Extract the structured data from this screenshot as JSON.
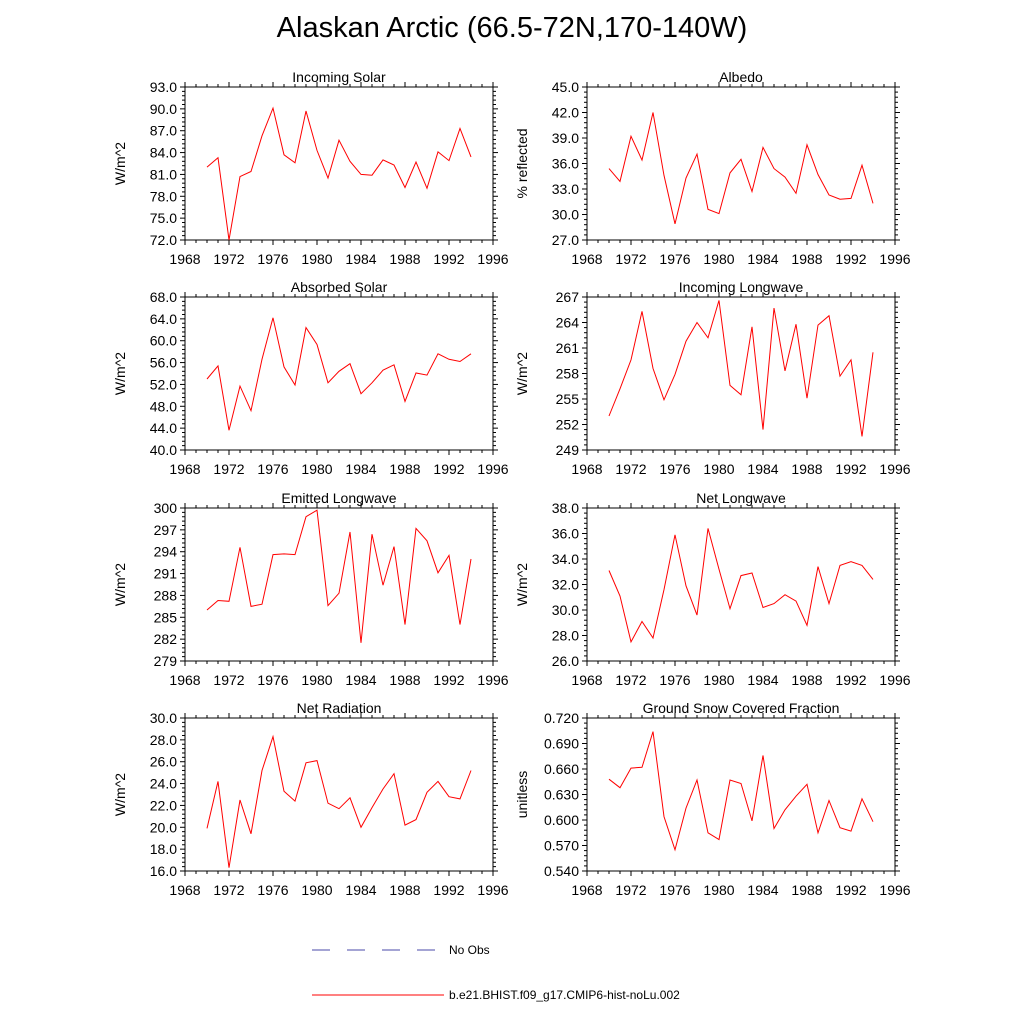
{
  "title": "Alaskan Arctic (66.5-72N,170-140W)",
  "legend": {
    "items": [
      {
        "label": "No Obs",
        "color": "#4a4aa8",
        "style": "dashed"
      },
      {
        "label": "b.e21.BHIST.f09_g17.CMIP6-hist-noLu.002",
        "color": "#ff0000",
        "style": "solid"
      }
    ]
  },
  "chart_data": [
    {
      "type": "line",
      "title": "Incoming Solar",
      "ylabel": "W/m^2",
      "xlabel": "",
      "xlim": [
        1968,
        1996
      ],
      "xticks": [
        1968,
        1972,
        1976,
        1980,
        1984,
        1988,
        1992,
        1996
      ],
      "ylim": [
        72.0,
        93.0
      ],
      "yticks": [
        "72.0",
        "75.0",
        "78.0",
        "81.0",
        "84.0",
        "87.0",
        "90.0",
        "93.0"
      ],
      "series": [
        {
          "name": "b.e21.BHIST.f09_g17.CMIP6-hist-noLu.002",
          "color": "#ff0000",
          "x": [
            1970,
            1971,
            1972,
            1973,
            1974,
            1975,
            1976,
            1977,
            1978,
            1979,
            1980,
            1981,
            1982,
            1983,
            1984,
            1985,
            1986,
            1987,
            1988,
            1989,
            1990,
            1991,
            1992,
            1993,
            1994
          ],
          "y": [
            82.0,
            83.3,
            72.0,
            80.7,
            81.4,
            86.3,
            90.1,
            83.7,
            82.6,
            89.7,
            84.3,
            80.5,
            85.7,
            82.8,
            81.0,
            80.9,
            83.0,
            82.3,
            79.2,
            82.7,
            79.1,
            84.1,
            82.9,
            87.3,
            83.4
          ]
        }
      ]
    },
    {
      "type": "line",
      "title": "Albedo",
      "ylabel": "% reflected",
      "xlabel": "",
      "xlim": [
        1968,
        1996
      ],
      "xticks": [
        1968,
        1972,
        1976,
        1980,
        1984,
        1988,
        1992,
        1996
      ],
      "ylim": [
        27.0,
        45.0
      ],
      "yticks": [
        "27.0",
        "30.0",
        "33.0",
        "36.0",
        "39.0",
        "42.0",
        "45.0"
      ],
      "series": [
        {
          "name": "b.e21.BHIST.f09_g17.CMIP6-hist-noLu.002",
          "color": "#ff0000",
          "x": [
            1970,
            1971,
            1972,
            1973,
            1974,
            1975,
            1976,
            1977,
            1978,
            1979,
            1980,
            1981,
            1982,
            1983,
            1984,
            1985,
            1986,
            1987,
            1988,
            1989,
            1990,
            1991,
            1992,
            1993,
            1994
          ],
          "y": [
            35.4,
            33.9,
            39.2,
            36.4,
            42.0,
            34.6,
            28.9,
            34.3,
            37.1,
            30.6,
            30.1,
            34.9,
            36.5,
            32.7,
            37.9,
            35.4,
            34.4,
            32.5,
            38.2,
            34.7,
            32.3,
            31.8,
            31.9,
            35.8,
            31.3
          ]
        }
      ]
    },
    {
      "type": "line",
      "title": "Absorbed Solar",
      "ylabel": "W/m^2",
      "xlabel": "",
      "xlim": [
        1968,
        1996
      ],
      "xticks": [
        1968,
        1972,
        1976,
        1980,
        1984,
        1988,
        1992,
        1996
      ],
      "ylim": [
        40.0,
        68.0
      ],
      "yticks": [
        "40.0",
        "44.0",
        "48.0",
        "52.0",
        "56.0",
        "60.0",
        "64.0",
        "68.0"
      ],
      "series": [
        {
          "name": "b.e21.BHIST.f09_g17.CMIP6-hist-noLu.002",
          "color": "#ff0000",
          "x": [
            1970,
            1971,
            1972,
            1973,
            1974,
            1975,
            1976,
            1977,
            1978,
            1979,
            1980,
            1981,
            1982,
            1983,
            1984,
            1985,
            1986,
            1987,
            1988,
            1989,
            1990,
            1991,
            1992,
            1993,
            1994
          ],
          "y": [
            53.0,
            55.4,
            43.6,
            51.7,
            47.2,
            56.6,
            64.2,
            55.2,
            51.9,
            62.4,
            59.3,
            52.3,
            54.4,
            55.8,
            50.3,
            52.3,
            54.6,
            55.6,
            48.9,
            54.1,
            53.7,
            57.6,
            56.6,
            56.2,
            57.6
          ]
        }
      ]
    },
    {
      "type": "line",
      "title": "Incoming Longwave",
      "ylabel": "W/m^2",
      "xlabel": "",
      "xlim": [
        1968,
        1996
      ],
      "xticks": [
        1968,
        1972,
        1976,
        1980,
        1984,
        1988,
        1992,
        1996
      ],
      "ylim": [
        249,
        267
      ],
      "yticks": [
        "249",
        "252",
        "255",
        "258",
        "261",
        "264",
        "267"
      ],
      "series": [
        {
          "name": "b.e21.BHIST.f09_g17.CMIP6-hist-noLu.002",
          "color": "#ff0000",
          "x": [
            1970,
            1971,
            1972,
            1973,
            1974,
            1975,
            1976,
            1977,
            1978,
            1979,
            1980,
            1981,
            1982,
            1983,
            1984,
            1985,
            1986,
            1987,
            1988,
            1989,
            1990,
            1991,
            1992,
            1993,
            1994
          ],
          "y": [
            253.0,
            256.2,
            259.6,
            265.3,
            258.6,
            254.9,
            257.9,
            261.8,
            264.0,
            262.2,
            266.6,
            256.6,
            255.5,
            263.5,
            251.4,
            265.7,
            258.3,
            263.8,
            255.1,
            263.7,
            264.8,
            257.7,
            259.6,
            250.6,
            260.5
          ]
        }
      ]
    },
    {
      "type": "line",
      "title": "Emitted Longwave",
      "ylabel": "W/m^2",
      "xlabel": "",
      "xlim": [
        1968,
        1996
      ],
      "xticks": [
        1968,
        1972,
        1976,
        1980,
        1984,
        1988,
        1992,
        1996
      ],
      "ylim": [
        279,
        300
      ],
      "yticks": [
        "279",
        "282",
        "285",
        "288",
        "291",
        "294",
        "297",
        "300"
      ],
      "series": [
        {
          "name": "b.e21.BHIST.f09_g17.CMIP6-hist-noLu.002",
          "color": "#ff0000",
          "x": [
            1970,
            1971,
            1972,
            1973,
            1974,
            1975,
            1976,
            1977,
            1978,
            1979,
            1980,
            1981,
            1982,
            1983,
            1984,
            1985,
            1986,
            1987,
            1988,
            1989,
            1990,
            1991,
            1992,
            1993,
            1994
          ],
          "y": [
            286.0,
            287.3,
            287.2,
            294.6,
            286.5,
            286.8,
            293.6,
            293.7,
            293.6,
            298.8,
            299.7,
            286.6,
            288.3,
            296.7,
            281.5,
            296.4,
            289.4,
            294.7,
            284.0,
            297.2,
            295.5,
            291.1,
            293.5,
            284.0,
            293.0
          ]
        }
      ]
    },
    {
      "type": "line",
      "title": "Net Longwave",
      "ylabel": "W/m^2",
      "xlabel": "",
      "xlim": [
        1968,
        1996
      ],
      "xticks": [
        1968,
        1972,
        1976,
        1980,
        1984,
        1988,
        1992,
        1996
      ],
      "ylim": [
        26.0,
        38.0
      ],
      "yticks": [
        "26.0",
        "28.0",
        "30.0",
        "32.0",
        "34.0",
        "36.0",
        "38.0"
      ],
      "series": [
        {
          "name": "b.e21.BHIST.f09_g17.CMIP6-hist-noLu.002",
          "color": "#ff0000",
          "x": [
            1970,
            1971,
            1972,
            1973,
            1974,
            1975,
            1976,
            1977,
            1978,
            1979,
            1980,
            1981,
            1982,
            1983,
            1984,
            1985,
            1986,
            1987,
            1988,
            1989,
            1990,
            1991,
            1992,
            1993,
            1994
          ],
          "y": [
            33.1,
            31.1,
            27.5,
            29.1,
            27.8,
            31.6,
            35.9,
            31.9,
            29.6,
            36.4,
            33.2,
            30.1,
            32.7,
            32.9,
            30.2,
            30.5,
            31.2,
            30.7,
            28.8,
            33.4,
            30.5,
            33.5,
            33.8,
            33.5,
            32.4
          ]
        }
      ]
    },
    {
      "type": "line",
      "title": "Net Radiation",
      "ylabel": "W/m^2",
      "xlabel": "",
      "xlim": [
        1968,
        1996
      ],
      "xticks": [
        1968,
        1972,
        1976,
        1980,
        1984,
        1988,
        1992,
        1996
      ],
      "ylim": [
        16.0,
        30.0
      ],
      "yticks": [
        "16.0",
        "18.0",
        "20.0",
        "22.0",
        "24.0",
        "26.0",
        "28.0",
        "30.0"
      ],
      "series": [
        {
          "name": "b.e21.BHIST.f09_g17.CMIP6-hist-noLu.002",
          "color": "#ff0000",
          "x": [
            1970,
            1971,
            1972,
            1973,
            1974,
            1975,
            1976,
            1977,
            1978,
            1979,
            1980,
            1981,
            1982,
            1983,
            1984,
            1985,
            1986,
            1987,
            1988,
            1989,
            1990,
            1991,
            1992,
            1993,
            1994
          ],
          "y": [
            19.9,
            24.2,
            16.3,
            22.5,
            19.4,
            25.2,
            28.3,
            23.3,
            22.4,
            25.9,
            26.1,
            22.2,
            21.7,
            22.7,
            20.0,
            21.8,
            23.5,
            24.9,
            20.2,
            20.7,
            23.2,
            24.2,
            22.8,
            22.6,
            25.2
          ]
        }
      ]
    },
    {
      "type": "line",
      "title": "Ground Snow Covered Fraction",
      "ylabel": "unitless",
      "xlabel": "",
      "xlim": [
        1968,
        1996
      ],
      "xticks": [
        1968,
        1972,
        1976,
        1980,
        1984,
        1988,
        1992,
        1996
      ],
      "ylim": [
        0.54,
        0.72
      ],
      "yticks": [
        "0.540",
        "0.570",
        "0.600",
        "0.630",
        "0.660",
        "0.690",
        "0.720"
      ],
      "series": [
        {
          "name": "b.e21.BHIST.f09_g17.CMIP6-hist-noLu.002",
          "color": "#ff0000",
          "x": [
            1970,
            1971,
            1972,
            1973,
            1974,
            1975,
            1976,
            1977,
            1978,
            1979,
            1980,
            1981,
            1982,
            1983,
            1984,
            1985,
            1986,
            1987,
            1988,
            1989,
            1990,
            1991,
            1992,
            1993,
            1994
          ],
          "y": [
            0.648,
            0.638,
            0.661,
            0.662,
            0.704,
            0.604,
            0.565,
            0.614,
            0.647,
            0.585,
            0.577,
            0.647,
            0.643,
            0.599,
            0.676,
            0.59,
            0.612,
            0.628,
            0.642,
            0.585,
            0.623,
            0.591,
            0.587,
            0.625,
            0.598
          ]
        }
      ]
    }
  ]
}
